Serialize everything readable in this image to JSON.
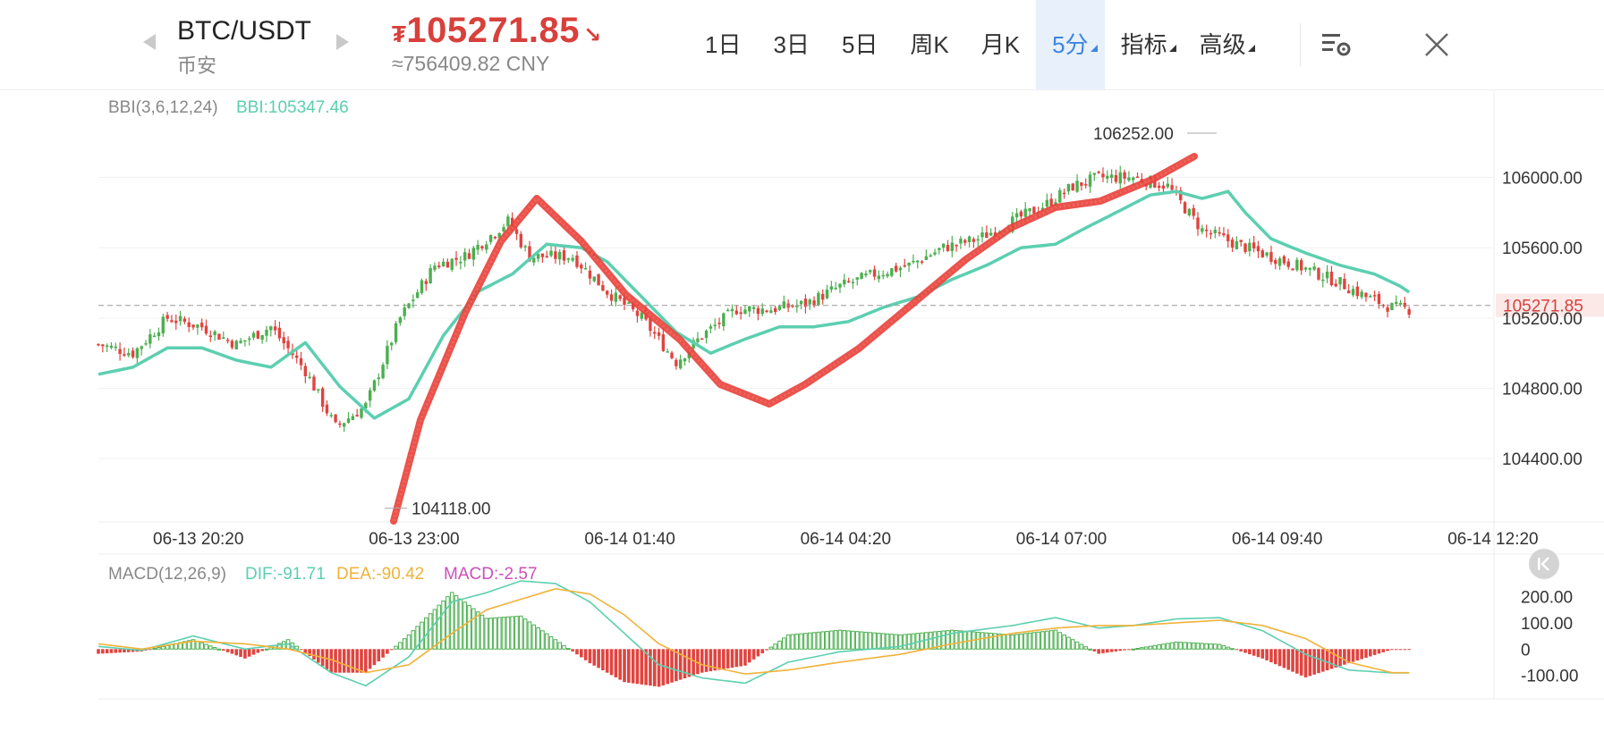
{
  "header": {
    "symbol": "BTC/USDT",
    "exchange": "币安",
    "price_currency": "₮",
    "price": "105271.85",
    "price_direction": "↘",
    "cny_price": "≈756409.82 CNY"
  },
  "tabs": [
    {
      "label": "1日",
      "selected": false,
      "corner": false
    },
    {
      "label": "3日",
      "selected": false,
      "corner": false
    },
    {
      "label": "5日",
      "selected": false,
      "corner": false
    },
    {
      "label": "周K",
      "selected": false,
      "corner": false
    },
    {
      "label": "月K",
      "selected": false,
      "corner": false
    },
    {
      "label": "5分",
      "selected": true,
      "corner": true
    },
    {
      "label": "指标",
      "selected": false,
      "corner": true
    },
    {
      "label": "高级",
      "selected": false,
      "corner": true
    }
  ],
  "icons": {
    "prev": "chevron-left-icon",
    "next": "chevron-right-icon",
    "settings": "chart-settings-icon",
    "close": "close-icon",
    "reset": "reset-icon"
  },
  "indicators": {
    "bbi_name": "BBI(3,6,12,24)",
    "bbi_value": "BBI:105347.46",
    "macd_name": "MACD(12,26,9)",
    "dif": "DIF:-91.71",
    "dea": "DEA:-90.42",
    "macd": "MACD:-2.57"
  },
  "colors": {
    "up": "#4caf50",
    "down": "#e0443f",
    "bbi": "#5ccfb0",
    "dif": "#5ccfb0",
    "dea": "#f0b23a",
    "macd": "#cc4fb8",
    "price": "#d8403c",
    "accent": "#3b86e0",
    "drawing": "#e8403a"
  },
  "chart_data": [
    {
      "type": "candlestick",
      "interval": "5分",
      "y_ticks": [
        "106000.00",
        "105600.00",
        "105200.00",
        "104800.00",
        "104400.00"
      ],
      "ylim": [
        104050,
        106450
      ],
      "x_ticks": [
        "06-13 20:20",
        "06-13 23:00",
        "06-14 01:40",
        "06-14 04:20",
        "06-14 07:00",
        "06-14 09:40",
        "06-14 12:20"
      ],
      "current_price_label": "105271.85",
      "current_price": 105271.85,
      "high_label": "106252.00",
      "high": 106252.0,
      "low_label": "104118.00",
      "low": 104118.0,
      "series": [
        {
          "name": "BBI",
          "close_keypoints": [
            [
              0,
              105050
            ],
            [
              8,
              105000
            ],
            [
              16,
              105200
            ],
            [
              24,
              105150
            ],
            [
              32,
              105050
            ],
            [
              40,
              105150
            ],
            [
              48,
              104900
            ],
            [
              55,
              104580
            ],
            [
              62,
              104700
            ],
            [
              70,
              105200
            ],
            [
              78,
              105500
            ],
            [
              85,
              105550
            ],
            [
              90,
              105650
            ],
            [
              95,
              105750
            ],
            [
              100,
              105550
            ],
            [
              110,
              105550
            ],
            [
              118,
              105350
            ],
            [
              126,
              105200
            ],
            [
              134,
              104950
            ],
            [
              140,
              105100
            ],
            [
              148,
              105250
            ],
            [
              156,
              105250
            ],
            [
              164,
              105280
            ],
            [
              172,
              105380
            ],
            [
              180,
              105450
            ],
            [
              188,
              105500
            ],
            [
              196,
              105600
            ],
            [
              204,
              105650
            ],
            [
              212,
              105750
            ],
            [
              220,
              105850
            ],
            [
              226,
              105950
            ],
            [
              232,
              106000
            ],
            [
              240,
              106000
            ],
            [
              248,
              105950
            ],
            [
              256,
              105700
            ],
            [
              264,
              105620
            ],
            [
              272,
              105550
            ],
            [
              280,
              105480
            ],
            [
              288,
              105400
            ],
            [
              294,
              105320
            ],
            [
              300,
              105260
            ],
            [
              304,
              105250
            ]
          ]
        },
        {
          "name": "BBI",
          "bbi_keypoints": [
            [
              0,
              104880
            ],
            [
              8,
              104920
            ],
            [
              16,
              105030
            ],
            [
              24,
              105030
            ],
            [
              32,
              104960
            ],
            [
              40,
              104920
            ],
            [
              48,
              105060
            ],
            [
              56,
              104810
            ],
            [
              64,
              104630
            ],
            [
              72,
              104740
            ],
            [
              80,
              105100
            ],
            [
              88,
              105350
            ],
            [
              96,
              105450
            ],
            [
              104,
              105620
            ],
            [
              112,
              105600
            ],
            [
              118,
              105520
            ],
            [
              126,
              105320
            ],
            [
              134,
              105120
            ],
            [
              142,
              105000
            ],
            [
              150,
              105080
            ],
            [
              158,
              105150
            ],
            [
              166,
              105150
            ],
            [
              174,
              105180
            ],
            [
              182,
              105260
            ],
            [
              190,
              105320
            ],
            [
              198,
              105420
            ],
            [
              206,
              105500
            ],
            [
              214,
              105600
            ],
            [
              222,
              105620
            ],
            [
              228,
              105700
            ],
            [
              236,
              105800
            ],
            [
              244,
              105900
            ],
            [
              250,
              105920
            ],
            [
              256,
              105880
            ],
            [
              262,
              105920
            ],
            [
              266,
              105800
            ],
            [
              272,
              105650
            ],
            [
              280,
              105570
            ],
            [
              288,
              105500
            ],
            [
              296,
              105450
            ],
            [
              302,
              105380
            ],
            [
              304,
              105347
            ]
          ]
        }
      ]
    },
    {
      "type": "bar",
      "name": "MACD(12,26,9)",
      "y_ticks": [
        "200.00",
        "100.00",
        "0",
        "-100.00"
      ],
      "ylim": [
        -190,
        260
      ],
      "series": [
        {
          "name": "DIF",
          "keypoints": [
            [
              0,
              10
            ],
            [
              10,
              -5
            ],
            [
              22,
              50
            ],
            [
              34,
              0
            ],
            [
              44,
              20
            ],
            [
              54,
              -90
            ],
            [
              62,
              -140
            ],
            [
              72,
              -30
            ],
            [
              82,
              180
            ],
            [
              90,
              215
            ],
            [
              98,
              260
            ],
            [
              106,
              250
            ],
            [
              114,
              180
            ],
            [
              122,
              60
            ],
            [
              130,
              -60
            ],
            [
              140,
              -110
            ],
            [
              150,
              -130
            ],
            [
              160,
              -50
            ],
            [
              172,
              -10
            ],
            [
              186,
              10
            ],
            [
              198,
              60
            ],
            [
              212,
              90
            ],
            [
              222,
              120
            ],
            [
              232,
              80
            ],
            [
              240,
              90
            ],
            [
              250,
              115
            ],
            [
              260,
              120
            ],
            [
              270,
              70
            ],
            [
              280,
              -20
            ],
            [
              290,
              -80
            ],
            [
              300,
              -91
            ]
          ]
        },
        {
          "name": "DEA",
          "keypoints": [
            [
              0,
              20
            ],
            [
              10,
              0
            ],
            [
              22,
              30
            ],
            [
              34,
              20
            ],
            [
              44,
              0
            ],
            [
              54,
              -40
            ],
            [
              62,
              -90
            ],
            [
              72,
              -60
            ],
            [
              82,
              60
            ],
            [
              90,
              150
            ],
            [
              98,
              190
            ],
            [
              106,
              230
            ],
            [
              114,
              210
            ],
            [
              122,
              130
            ],
            [
              130,
              20
            ],
            [
              140,
              -60
            ],
            [
              150,
              -95
            ],
            [
              160,
              -80
            ],
            [
              172,
              -50
            ],
            [
              186,
              -20
            ],
            [
              198,
              20
            ],
            [
              212,
              60
            ],
            [
              222,
              80
            ],
            [
              232,
              90
            ],
            [
              240,
              90
            ],
            [
              250,
              100
            ],
            [
              260,
              110
            ],
            [
              270,
              90
            ],
            [
              280,
              40
            ],
            [
              290,
              -50
            ],
            [
              300,
              -90
            ]
          ]
        }
      ]
    }
  ]
}
